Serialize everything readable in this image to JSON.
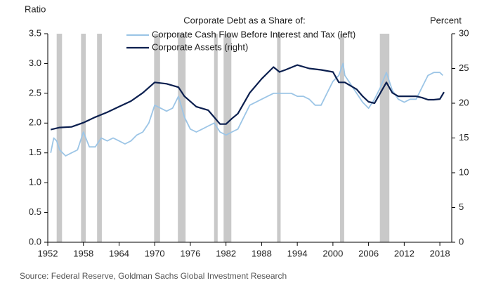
{
  "chart_data": {
    "type": "line",
    "title": "Corporate  Debt as a Share of:",
    "y_label": "Ratio",
    "y2_label": "Percent",
    "source": "Source: Federal Reserve, Goldman Sachs Global Investment Research",
    "xlim": [
      1952,
      2020
    ],
    "xticks": [
      1952,
      1958,
      1964,
      1970,
      1976,
      1982,
      1988,
      1994,
      2000,
      2006,
      2012,
      2018
    ],
    "ylim": [
      0,
      3.5
    ],
    "yticks": [
      {
        "value": 0,
        "label": "0.0"
      },
      {
        "value": 0.5,
        "label": "0.5"
      },
      {
        "value": 1,
        "label": "1.0"
      },
      {
        "value": 1.5,
        "label": "1.5"
      },
      {
        "value": 2,
        "label": "2.0"
      },
      {
        "value": 2.5,
        "label": "2.5"
      },
      {
        "value": 3,
        "label": "3.0"
      },
      {
        "value": 3.5,
        "label": "3.5"
      }
    ],
    "y2lim": [
      0,
      30
    ],
    "y2ticks": [
      0,
      5,
      10,
      15,
      20,
      25,
      30
    ],
    "recessions": {
      "color": "#c9c9c9",
      "periods": [
        [
          1953.5,
          1954.4
        ],
        [
          1957.6,
          1958.4
        ],
        [
          1960.3,
          1961.1
        ],
        [
          1969.9,
          1970.9
        ],
        [
          1973.9,
          1975.2
        ],
        [
          1980.0,
          1980.6
        ],
        [
          1981.6,
          1982.9
        ],
        [
          1990.6,
          1991.2
        ],
        [
          2001.2,
          2001.9
        ],
        [
          2007.9,
          2009.5
        ]
      ]
    },
    "series": [
      {
        "name": "Corporate Cash Flow Before Interest and Tax (left)",
        "color": "#9cc5e6",
        "x": [
          1952.5,
          1953,
          1953.5,
          1954,
          1955,
          1956,
          1957,
          1958,
          1959,
          1960,
          1961,
          1962,
          1963,
          1964,
          1965,
          1966,
          1967,
          1968,
          1969,
          1970,
          1971,
          1972,
          1973,
          1974,
          1975,
          1976,
          1977,
          1978,
          1979,
          1980,
          1981,
          1982,
          1983,
          1984,
          1985,
          1986,
          1987,
          1988,
          1989,
          1990,
          1991,
          1992,
          1993,
          1994,
          1995,
          1996,
          1997,
          1998,
          1999,
          2000,
          2001,
          2001.7,
          2002,
          2003,
          2004,
          2005,
          2006,
          2007,
          2008,
          2009,
          2010,
          2011,
          2012,
          2013,
          2014,
          2015,
          2016,
          2017,
          2018,
          2018.5
        ],
        "values": [
          1.5,
          1.75,
          1.7,
          1.55,
          1.45,
          1.5,
          1.55,
          1.85,
          1.6,
          1.6,
          1.75,
          1.7,
          1.75,
          1.7,
          1.65,
          1.7,
          1.8,
          1.85,
          2.0,
          2.3,
          2.25,
          2.2,
          2.25,
          2.45,
          2.1,
          1.9,
          1.85,
          1.9,
          1.95,
          2.0,
          1.85,
          1.8,
          1.85,
          1.9,
          2.1,
          2.3,
          2.35,
          2.4,
          2.45,
          2.5,
          2.5,
          2.5,
          2.5,
          2.45,
          2.45,
          2.4,
          2.3,
          2.3,
          2.5,
          2.7,
          2.8,
          3.0,
          2.8,
          2.65,
          2.5,
          2.35,
          2.25,
          2.4,
          2.6,
          2.85,
          2.55,
          2.4,
          2.35,
          2.4,
          2.4,
          2.6,
          2.8,
          2.85,
          2.85,
          2.8
        ]
      },
      {
        "name": "Corporate Assets (right)",
        "color": "#0b1f4f",
        "axis": "y2",
        "x": [
          1952.5,
          1954,
          1956,
          1958,
          1960,
          1962,
          1964,
          1966,
          1968,
          1970,
          1972,
          1974,
          1975,
          1977,
          1979,
          1981,
          1982,
          1983,
          1984,
          1986,
          1988,
          1990,
          1991,
          1992,
          1994,
          1996,
          1998,
          2000,
          2001,
          2002,
          2003,
          2004,
          2005,
          2006,
          2007,
          2008,
          2009,
          2010,
          2011,
          2012,
          2013,
          2014,
          2015,
          2016,
          2017,
          2018,
          2018.7
        ],
        "values": [
          16.2,
          16.5,
          16.6,
          17.2,
          18,
          18.7,
          19.5,
          20.3,
          21.5,
          23,
          22.8,
          22.3,
          21,
          19.5,
          19,
          17,
          17,
          17.8,
          18.5,
          21.5,
          23.5,
          25.2,
          24.5,
          24.8,
          25.5,
          25,
          24.8,
          24.5,
          23,
          23,
          22.5,
          22,
          21,
          20.2,
          20,
          21.5,
          23,
          21.5,
          21,
          21,
          21,
          21,
          20.8,
          20.5,
          20.5,
          20.6,
          21.6
        ]
      }
    ]
  }
}
